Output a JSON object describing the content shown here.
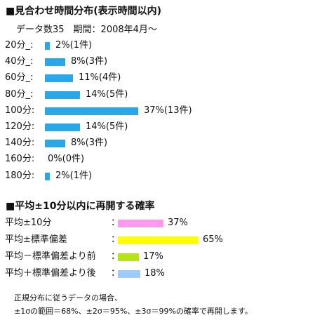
{
  "section1": {
    "title": "■見合わせ時間分布(表示時間以内)",
    "count_period": "データ数35　期間：2008年4月～"
  },
  "section2": {
    "title": "■平均±10分以内に再開する確率"
  },
  "footnote": {
    "line1": "正規分布に従うデータの場合、",
    "line2": "±1σの範囲＝68%、±2σ＝95%、±3σ＝99%の確率で再開します。"
  },
  "chart_data": [
    {
      "type": "bar",
      "orientation": "horizontal",
      "categories": [
        "20分_:",
        "40分_:",
        "60分_:",
        "80分_:",
        "100分:",
        "120分:",
        "140分:",
        "160分:",
        "180分:"
      ],
      "values": [
        2,
        8,
        11,
        14,
        37,
        14,
        8,
        0,
        2
      ],
      "value_labels": [
        "2%(1件)",
        "8%(3件)",
        "11%(4件)",
        "14%(5件)",
        "37%(13件)",
        "14%(5件)",
        "8%(3件)",
        "0%(0件)",
        "2%(1件)"
      ],
      "colors": [
        "#2aa7e8",
        "#2aa7e8",
        "#2aa7e8",
        "#2aa7e8",
        "#2aa7e8",
        "#2aa7e8",
        "#2aa7e8",
        "#2aa7e8",
        "#2aa7e8"
      ],
      "xlim": [
        0,
        37
      ]
    },
    {
      "type": "bar",
      "orientation": "horizontal",
      "categories": [
        "平均±10分",
        "平均±標準偏差",
        "平均－標準偏差より前",
        "平均＋標準偏差より後"
      ],
      "values": [
        37,
        65,
        17,
        18
      ],
      "value_labels": [
        "37%",
        "65%",
        "17%",
        "18%"
      ],
      "colors": [
        "#ff99ee",
        "#ffff00",
        "#b6e41a",
        "#9ecbff"
      ],
      "xlim": [
        0,
        65
      ]
    }
  ]
}
